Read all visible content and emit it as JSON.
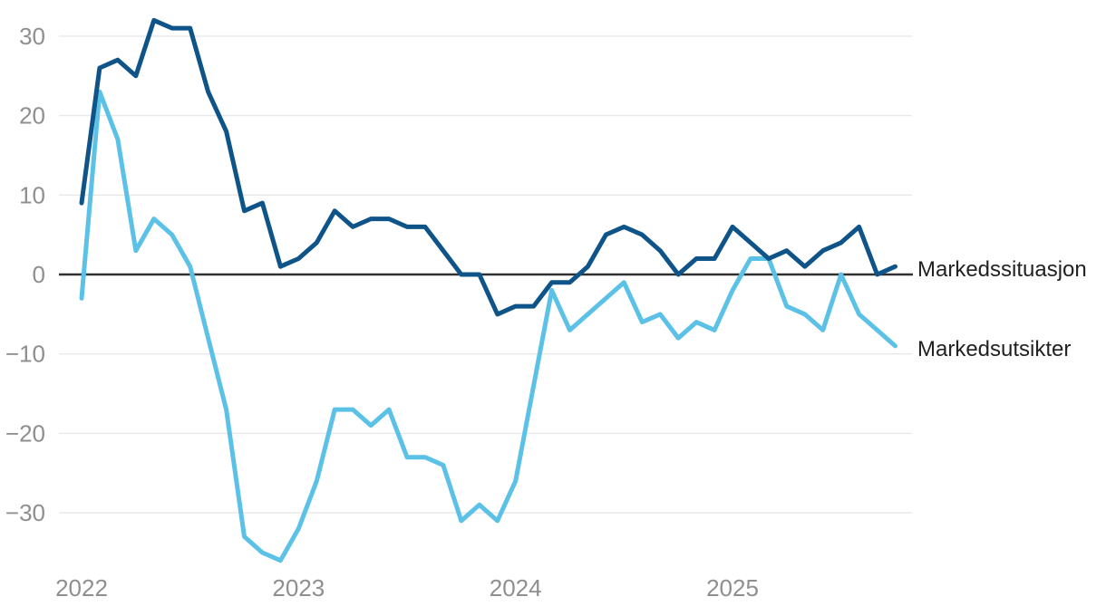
{
  "chart_data": {
    "type": "line",
    "title": "",
    "x_unit": "month",
    "grid": "horizontal-only",
    "legend_position": "right-end-labels",
    "background_color": "#ffffff",
    "gridline_color": "#E8E8E8",
    "zero_line_color": "#303030",
    "axis_text_color": "#8F8F8F",
    "series_label_text_color": "#222222",
    "x": [
      "2022-01",
      "2022-02",
      "2022-03",
      "2022-04",
      "2022-05",
      "2022-06",
      "2022-07",
      "2022-08",
      "2022-09",
      "2022-10",
      "2022-11",
      "2022-12",
      "2023-01",
      "2023-02",
      "2023-03",
      "2023-04",
      "2023-05",
      "2023-06",
      "2023-07",
      "2023-08",
      "2023-09",
      "2023-10",
      "2023-11",
      "2023-12",
      "2024-01",
      "2024-02",
      "2024-03",
      "2024-04",
      "2024-05",
      "2024-06",
      "2024-07",
      "2024-08",
      "2024-09",
      "2024-10",
      "2024-11",
      "2024-12",
      "2025-01",
      "2025-02",
      "2025-03",
      "2025-04",
      "2025-05",
      "2025-06",
      "2025-07",
      "2025-08",
      "2025-09",
      "2025-10"
    ],
    "x_tick_labels": [
      "2022",
      "2023",
      "2024",
      "2025"
    ],
    "x_tick_month_index": [
      0,
      12,
      24,
      36
    ],
    "y_ticks": [
      30,
      20,
      10,
      0,
      -10,
      -20,
      -30
    ],
    "y_tick_labels": [
      "30",
      "20",
      "10",
      "0",
      "−10",
      "−20",
      "−30"
    ],
    "ylim": [
      -38,
      33
    ],
    "series": [
      {
        "name": "Markedssituasjon",
        "label": "Markedssituasjon",
        "color": "#0E5489",
        "values": [
          9,
          26,
          27,
          25,
          32,
          31,
          31,
          23,
          18,
          8,
          9,
          1,
          2,
          4,
          8,
          6,
          7,
          7,
          6,
          6,
          3,
          0,
          0,
          -5,
          -4,
          -4,
          -1,
          -1,
          1,
          5,
          6,
          5,
          3,
          0,
          2,
          2,
          6,
          4,
          2,
          3,
          1,
          3,
          4,
          6,
          0,
          1
        ]
      },
      {
        "name": "Markedsutsikter",
        "label": "Markedsutsikter",
        "color": "#5CC1E6",
        "values": [
          -3,
          23,
          17,
          3,
          7,
          5,
          1,
          -8,
          -17,
          -33,
          -35,
          -36,
          -32,
          -26,
          -17,
          -17,
          -19,
          -17,
          -23,
          -23,
          -24,
          -31,
          -29,
          -31,
          -26,
          -14,
          -2,
          -7,
          -5,
          -3,
          -1,
          -6,
          -5,
          -8,
          -6,
          -7,
          -2,
          2,
          2,
          -4,
          -5,
          -7,
          0,
          -5,
          -7,
          -9
        ]
      }
    ]
  }
}
